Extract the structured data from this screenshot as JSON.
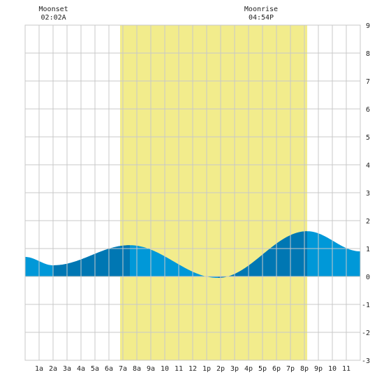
{
  "annotations": {
    "moonset": {
      "label": "Moonset",
      "time": "02:02A",
      "hour": 2.03
    },
    "moonrise": {
      "label": "Moonrise",
      "time": "04:54P",
      "hour": 16.9
    }
  },
  "colors": {
    "background": "#ffffff",
    "grid": "#c8c8c8",
    "daylight": "#f2ec8c",
    "tide_light": "#0098d8",
    "tide_dark": "#0077b3",
    "axis_text": "#222222"
  },
  "chart_data": {
    "type": "area",
    "title": "",
    "xlabel": "",
    "ylabel": "",
    "xlim": [
      0,
      24
    ],
    "ylim": [
      -3,
      9
    ],
    "grid": true,
    "x_tick_labels": [
      {
        "hour": 1,
        "label": "1a"
      },
      {
        "hour": 2,
        "label": "2a"
      },
      {
        "hour": 3,
        "label": "3a"
      },
      {
        "hour": 4,
        "label": "4a"
      },
      {
        "hour": 5,
        "label": "5a"
      },
      {
        "hour": 6,
        "label": "6a"
      },
      {
        "hour": 7,
        "label": "7a"
      },
      {
        "hour": 8,
        "label": "8a"
      },
      {
        "hour": 9,
        "label": "9a"
      },
      {
        "hour": 10,
        "label": "10"
      },
      {
        "hour": 11,
        "label": "11"
      },
      {
        "hour": 12,
        "label": "12"
      },
      {
        "hour": 13,
        "label": "1p"
      },
      {
        "hour": 14,
        "label": "2p"
      },
      {
        "hour": 15,
        "label": "3p"
      },
      {
        "hour": 16,
        "label": "4p"
      },
      {
        "hour": 17,
        "label": "5p"
      },
      {
        "hour": 18,
        "label": "6p"
      },
      {
        "hour": 19,
        "label": "7p"
      },
      {
        "hour": 20,
        "label": "8p"
      },
      {
        "hour": 21,
        "label": "9p"
      },
      {
        "hour": 22,
        "label": "10"
      },
      {
        "hour": 23,
        "label": "11"
      }
    ],
    "y_ticks": [
      -3,
      -2,
      -1,
      0,
      1,
      2,
      3,
      4,
      5,
      6,
      7,
      8,
      9
    ],
    "daylight": [
      6.8,
      20.2
    ],
    "extremes": [
      {
        "hour": 0.0,
        "value": 0.7
      },
      {
        "hour": 2.0,
        "value": 0.4
      },
      {
        "hour": 7.5,
        "value": 1.12
      },
      {
        "hour": 13.8,
        "value": -0.05
      },
      {
        "hour": 20.2,
        "value": 1.62
      },
      {
        "hour": 24.0,
        "value": 0.9
      }
    ],
    "rising_segments": [
      [
        2.0,
        7.5
      ],
      [
        13.8,
        20.2
      ]
    ]
  }
}
